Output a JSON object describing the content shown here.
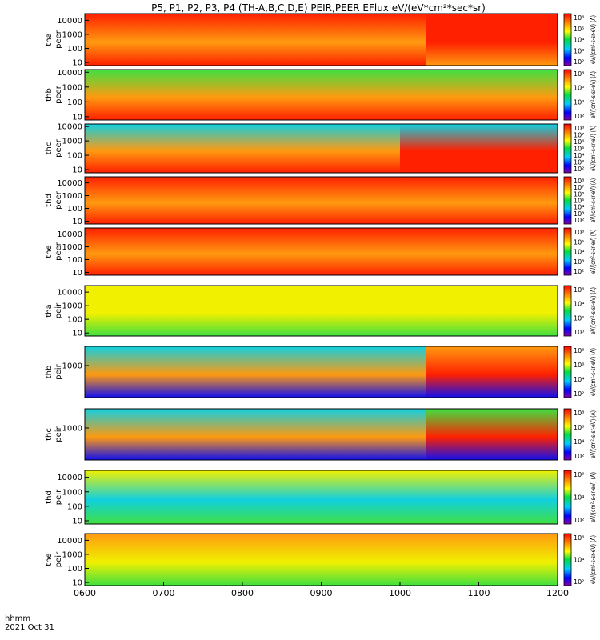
{
  "chart_data": {
    "type": "heatmap",
    "title": "P5, P1, P2, P3, P4 (TH-A,B,C,D,E) PEIR,PEER EFlux eV/(eV*cm²*sec*sr)",
    "x_ticks": [
      "0600",
      "0700",
      "0800",
      "0900",
      "1000",
      "1100",
      "1200"
    ],
    "xlim": [
      "0600",
      "1200"
    ],
    "x_footer": [
      "hhmm",
      "2021 Oct 31"
    ],
    "colorscale": "rainbow (purple-blue-cyan-green-yellow-orange-red)",
    "grid": false,
    "panels": [
      {
        "probe": "tha",
        "species": "peer",
        "ylabel": [
          "tha",
          "peer"
        ],
        "ylim": [
          6,
          30000
        ],
        "yscale": "log",
        "y_ticks": [
          "10000",
          "1000",
          "100",
          "10"
        ],
        "cb_ticks": [
          "10⁶",
          "10⁵",
          "10⁴",
          "10³",
          "10²"
        ],
        "cb_label": "eV/(cm²-s-sr-eV) (A)",
        "segments": [
          {
            "from": "0600",
            "to": "1020",
            "low": "red",
            "mid": "orange",
            "high": "red"
          },
          {
            "from": "1020",
            "to": "1200",
            "low": "orange",
            "mid": "red",
            "high": "red"
          }
        ]
      },
      {
        "probe": "thb",
        "species": "peer",
        "ylabel": [
          "thb",
          "peer"
        ],
        "ylim": [
          6,
          15000
        ],
        "yscale": "log",
        "y_ticks": [
          "10000",
          "1000",
          "100",
          "10"
        ],
        "cb_ticks": [
          "10⁸",
          "10⁶",
          "10⁴",
          "10²"
        ],
        "cb_label": "eV/(cm²-s-sr-eV) (A)",
        "segments": [
          {
            "from": "0600",
            "to": "1200",
            "low": "red",
            "mid": "orange",
            "high": "green"
          }
        ]
      },
      {
        "probe": "thc",
        "species": "peer",
        "ylabel": [
          "thc",
          "peer"
        ],
        "ylim": [
          6,
          15000
        ],
        "yscale": "log",
        "y_ticks": [
          "10000",
          "1000",
          "100",
          "10"
        ],
        "cb_ticks": [
          "10⁸",
          "10⁷",
          "10⁶",
          "10⁵",
          "10⁴",
          "10³",
          "10²"
        ],
        "cb_label": "eV/(cm²-s-sr-eV) (A)",
        "segments": [
          {
            "from": "0600",
            "to": "1000",
            "low": "red",
            "mid": "orange",
            "high": "cyan"
          },
          {
            "from": "1000",
            "to": "1200",
            "low": "red",
            "mid": "red",
            "high": "cyan"
          }
        ]
      },
      {
        "probe": "thd",
        "species": "peer",
        "ylabel": [
          "thd",
          "peer"
        ],
        "ylim": [
          6,
          30000
        ],
        "yscale": "log",
        "y_ticks": [
          "10000",
          "1000",
          "100",
          "10"
        ],
        "cb_ticks": [
          "10⁸",
          "10⁷",
          "10⁶",
          "10⁵",
          "10⁴",
          "10³",
          "10²"
        ],
        "cb_label": "eV/(cm²-s-sr-eV) (A)",
        "segments": [
          {
            "from": "0600",
            "to": "1200",
            "low": "red",
            "mid": "orange",
            "high": "red"
          }
        ]
      },
      {
        "probe": "the",
        "species": "peer",
        "ylabel": [
          "the",
          "peer"
        ],
        "ylim": [
          6,
          30000
        ],
        "yscale": "log",
        "y_ticks": [
          "10000",
          "1000",
          "100",
          "10"
        ],
        "cb_ticks": [
          "10⁶",
          "10⁵",
          "10⁴",
          "10³",
          "10²"
        ],
        "cb_label": "eV/(cm²-s-sr-eV) (A)",
        "segments": [
          {
            "from": "0600",
            "to": "1200",
            "low": "red",
            "mid": "orange",
            "high": "red"
          }
        ]
      },
      {
        "probe": "tha",
        "species": "peir",
        "ylabel": [
          "tha",
          "peir"
        ],
        "ylim": [
          6,
          30000
        ],
        "yscale": "log",
        "y_ticks": [
          "10000",
          "1000",
          "100",
          "10"
        ],
        "cb_ticks": [
          "10⁶",
          "10⁴",
          "10²",
          "10⁰"
        ],
        "cb_label": "eV/(cm²-s-sr-eV) (A)",
        "segments": [
          {
            "from": "0600",
            "to": "1200",
            "low": "green",
            "mid": "yellow",
            "high": "yellow"
          }
        ]
      },
      {
        "probe": "thb",
        "species": "peir",
        "ylabel": [
          "thb",
          "peir"
        ],
        "ylim": [
          50,
          6000
        ],
        "yscale": "log",
        "y_ticks": [
          "1000"
        ],
        "cb_ticks": [
          "10⁸",
          "10⁶",
          "10⁴",
          "10²"
        ],
        "cb_label": "eV/(cm²-s-sr-eV) (A)",
        "segments": [
          {
            "from": "0600",
            "to": "1020",
            "low": "blue",
            "mid": "orange",
            "high": "cyan"
          },
          {
            "from": "1020",
            "to": "1200",
            "low": "blue",
            "mid": "red",
            "high": "orange"
          }
        ]
      },
      {
        "probe": "thc",
        "species": "peir",
        "ylabel": [
          "thc",
          "peir"
        ],
        "ylim": [
          50,
          6000
        ],
        "yscale": "log",
        "y_ticks": [
          "1000"
        ],
        "cb_ticks": [
          "10⁸",
          "10⁶",
          "10⁴",
          "10²"
        ],
        "cb_label": "eV/(cm²-s-sr-eV) (A)",
        "segments": [
          {
            "from": "0600",
            "to": "1020",
            "low": "blue",
            "mid": "orange",
            "high": "cyan"
          },
          {
            "from": "1020",
            "to": "1200",
            "low": "blue",
            "mid": "red",
            "high": "green"
          }
        ]
      },
      {
        "probe": "thd",
        "species": "peir",
        "ylabel": [
          "thd",
          "peir"
        ],
        "ylim": [
          6,
          30000
        ],
        "yscale": "log",
        "y_ticks": [
          "10000",
          "1000",
          "100",
          "10"
        ],
        "cb_ticks": [
          "10⁶",
          "10⁴",
          "10²"
        ],
        "cb_label": "eV/(cm²-s-sr-eV) (A)",
        "segments": [
          {
            "from": "0600",
            "to": "1200",
            "low": "green",
            "mid": "cyan",
            "high": "yellow"
          }
        ]
      },
      {
        "probe": "the",
        "species": "peir",
        "ylabel": [
          "the",
          "peir"
        ],
        "ylim": [
          6,
          30000
        ],
        "yscale": "log",
        "y_ticks": [
          "10000",
          "1000",
          "100",
          "10"
        ],
        "cb_ticks": [
          "10⁶",
          "10⁴",
          "10²"
        ],
        "cb_label": "eV/(cm²-s-sr-eV) (A)",
        "segments": [
          {
            "from": "0600",
            "to": "1200",
            "low": "green",
            "mid": "yellow",
            "high": "orange"
          }
        ]
      }
    ]
  }
}
